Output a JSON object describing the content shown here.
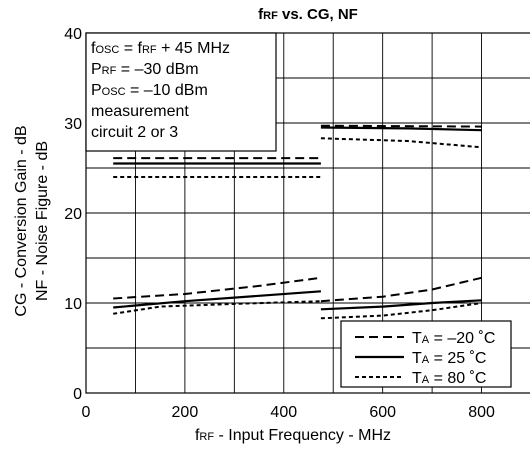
{
  "chart_data": {
    "type": "line",
    "title": {
      "pre": "f",
      "sub": "RF",
      "post": " vs. CG, NF"
    },
    "xlabel": {
      "pre": "f",
      "sub": "RF",
      "post": " - Input Frequency - MHz"
    },
    "ylabel_lines": [
      "CG - Conversion Gain - dB",
      "NF - Noise Figure - dB"
    ],
    "xlim": [
      0,
      900
    ],
    "ylim": [
      0,
      40
    ],
    "x_ticks": [
      0,
      200,
      400,
      600,
      800
    ],
    "x_tick_labels": [
      "0",
      "200",
      "400",
      "600",
      "800"
    ],
    "y_ticks": [
      0,
      10,
      20,
      30,
      40
    ],
    "y_tick_labels": [
      "0",
      "10",
      "20",
      "30",
      "40"
    ],
    "grid": true,
    "legend_position": "bottom-right",
    "conditions": [
      {
        "parts": [
          {
            "t": "f"
          },
          {
            "t": "OSC",
            "sub": true
          },
          {
            "t": " = f"
          },
          {
            "t": "RF",
            "sub": true
          },
          {
            "t": " + 45 MHz"
          }
        ]
      },
      {
        "parts": [
          {
            "t": "P"
          },
          {
            "t": "RF",
            "sub": true
          },
          {
            "t": " = –30 dBm"
          }
        ]
      },
      {
        "parts": [
          {
            "t": "P"
          },
          {
            "t": "OSC",
            "sub": true
          },
          {
            "t": " = –10 dBm"
          }
        ]
      },
      {
        "parts": [
          {
            "t": "measurement"
          }
        ]
      },
      {
        "parts": [
          {
            "t": "circuit 2 or 3"
          }
        ]
      }
    ],
    "series": [
      {
        "name": "TA = –20 °C",
        "legend": {
          "pre": "T",
          "sub": "A",
          "post": " = –20 ˚C"
        },
        "style": "dashed",
        "segments": [
          {
            "x": [
              55,
              475
            ],
            "y": [
              26.1,
              26.1
            ]
          },
          {
            "x": [
              475,
              800
            ],
            "y": [
              29.7,
              29.6
            ]
          },
          {
            "x": [
              55,
              200,
              350,
              475
            ],
            "y": [
              10.5,
              11.0,
              11.9,
              12.8
            ]
          },
          {
            "x": [
              475,
              600,
              700,
              800
            ],
            "y": [
              10.2,
              10.7,
              11.5,
              12.8
            ]
          }
        ]
      },
      {
        "name": "TA = 25 °C",
        "legend": {
          "pre": "T",
          "sub": "A",
          "post": " = 25 ˚C"
        },
        "style": "solid",
        "segments": [
          {
            "x": [
              55,
              475
            ],
            "y": [
              25.5,
              25.5
            ]
          },
          {
            "x": [
              475,
              650,
              800
            ],
            "y": [
              29.5,
              29.4,
              29.2
            ]
          },
          {
            "x": [
              55,
              200,
              350,
              475
            ],
            "y": [
              9.5,
              10.2,
              10.8,
              11.3
            ]
          },
          {
            "x": [
              475,
              600,
              700,
              800
            ],
            "y": [
              9.3,
              9.6,
              10.0,
              10.3
            ]
          }
        ]
      },
      {
        "name": "TA = 80 °C",
        "legend": {
          "pre": "T",
          "sub": "A",
          "post": " = 80 ˚C"
        },
        "style": "dotted",
        "segments": [
          {
            "x": [
              55,
              475
            ],
            "y": [
              24.0,
              24.0
            ]
          },
          {
            "x": [
              475,
              650,
              800
            ],
            "y": [
              28.3,
              28.0,
              27.3
            ]
          },
          {
            "x": [
              55,
              150,
              300,
              475
            ],
            "y": [
              8.8,
              9.6,
              9.9,
              10.2
            ]
          },
          {
            "x": [
              475,
              600,
              700,
              800
            ],
            "y": [
              8.3,
              8.6,
              9.2,
              10.0
            ]
          }
        ]
      }
    ]
  }
}
